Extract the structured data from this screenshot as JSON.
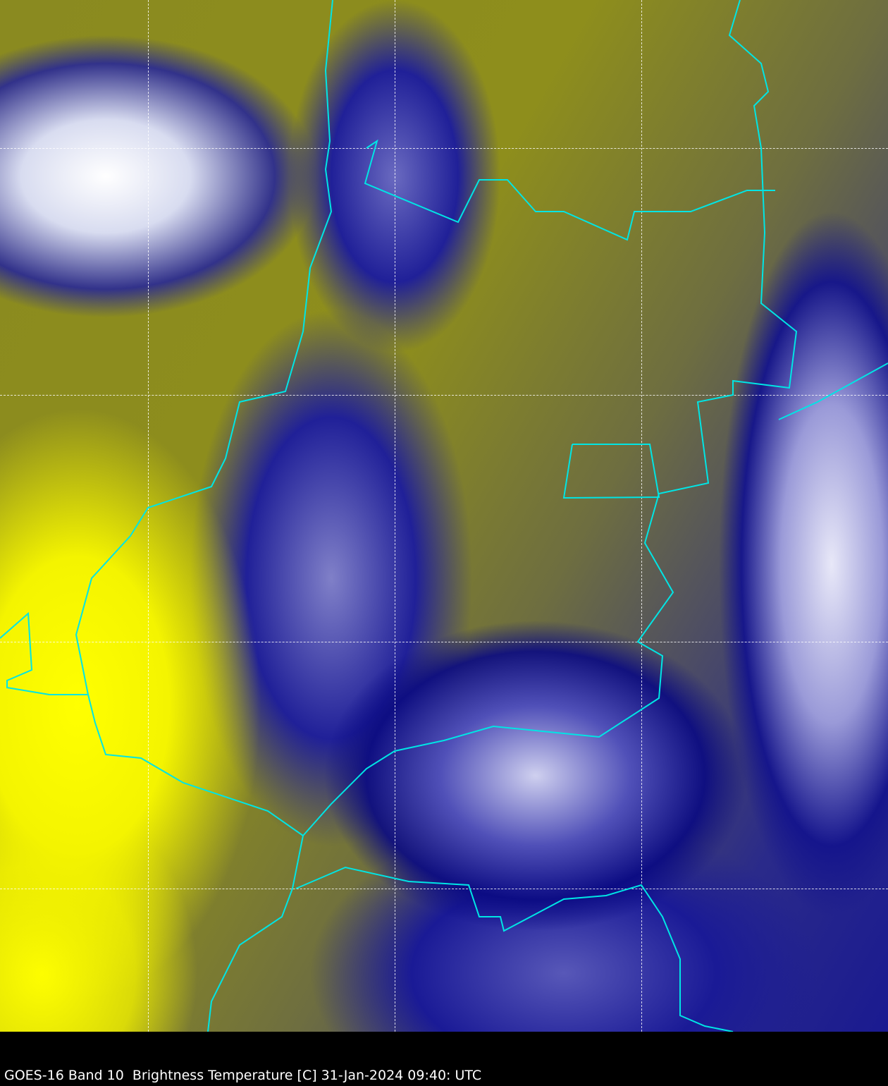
{
  "caption": "GOES-16 Band 10  Brightness Temperature [C] 31-Jan-2024 09:40: UTC",
  "colors": {
    "border": "#00e5e5",
    "warm": "#ffff00",
    "mid": "#8e8e1c",
    "cold": "#1a1a90",
    "coldest": "#ffffff"
  }
}
